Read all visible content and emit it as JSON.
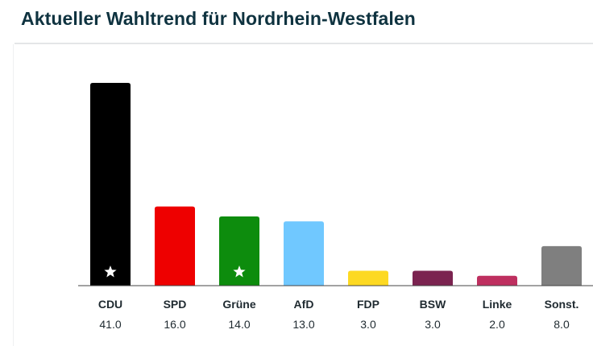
{
  "header": {
    "title": "Aktueller Wahltrend für Nordrhein-Westfalen"
  },
  "chart_data": {
    "type": "bar",
    "title": "Aktueller Wahltrend für Nordrhein-Westfalen",
    "xlabel": "",
    "ylabel": "",
    "ylim": [
      0,
      41
    ],
    "grid": false,
    "categories": [
      "CDU",
      "SPD",
      "Grüne",
      "AfD",
      "FDP",
      "BSW",
      "Linke",
      "Sonst."
    ],
    "values": [
      41.0,
      16.0,
      14.0,
      13.0,
      3.0,
      3.0,
      2.0,
      8.0
    ],
    "value_labels": [
      "41.0",
      "16.0",
      "14.0",
      "13.0",
      "3.0",
      "3.0",
      "2.0",
      "8.0"
    ],
    "colors": [
      "#000000",
      "#ee0000",
      "#0d8c0d",
      "#70c8ff",
      "#fdd922",
      "#7b2350",
      "#be2f5f",
      "#7f7f7f"
    ],
    "star_markers": [
      "CDU",
      "Grüne"
    ],
    "star_color": "#ffffff"
  }
}
